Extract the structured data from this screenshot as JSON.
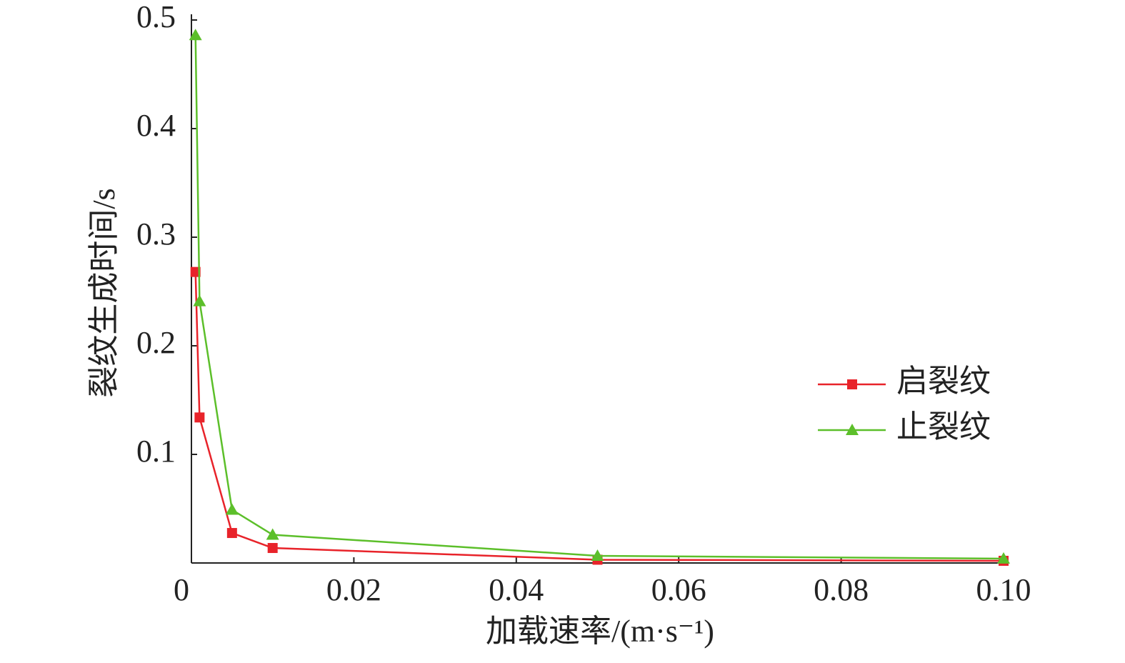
{
  "chart_data": {
    "type": "line",
    "x_label": "加载速率/(m·s⁻¹)",
    "y_label": "裂纹生成时间/s",
    "xlim": [
      0,
      0.1
    ],
    "ylim": [
      0,
      0.5
    ],
    "xticks": [
      0,
      0.02,
      0.04,
      0.06,
      0.08,
      {
        "value": 0.1,
        "label": "0.10"
      }
    ],
    "yticks": [
      0.1,
      0.2,
      0.3,
      0.4,
      0.5
    ],
    "x": [
      0.0005,
      0.001,
      0.005,
      0.01,
      0.05,
      0.1
    ],
    "legend": "right",
    "series": [
      {
        "name": "启裂纹",
        "color": "#e8232a",
        "marker": "square",
        "values": [
          0.268,
          0.134,
          0.0276,
          0.0138,
          0.003,
          0.002
        ]
      },
      {
        "name": "止裂纹",
        "color": "#5cbf2a",
        "marker": "triangle",
        "values": [
          0.486,
          0.241,
          0.049,
          0.026,
          0.0066,
          0.004
        ]
      }
    ]
  }
}
